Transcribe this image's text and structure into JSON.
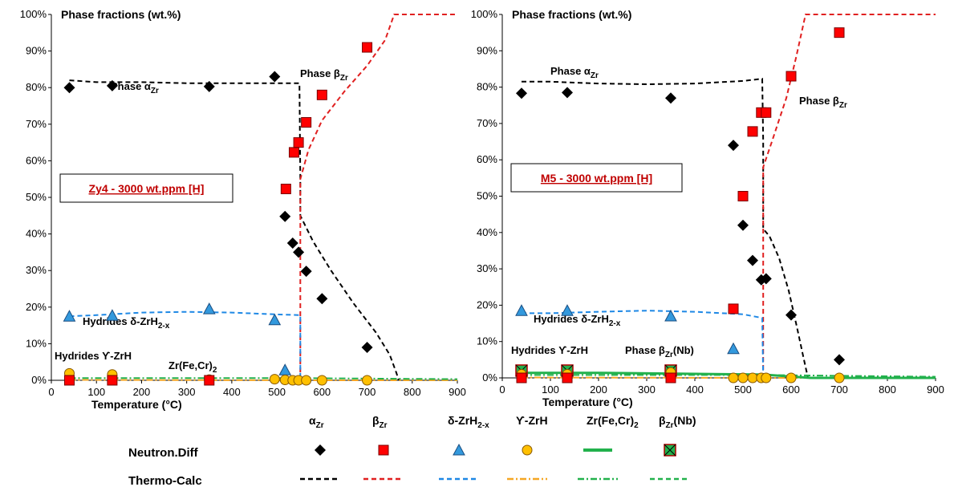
{
  "chart_data": [
    {
      "type": "scatter",
      "title": "Phase fractions (wt.%)",
      "xlabel": "Temperature (°C)",
      "xlim": [
        0,
        900
      ],
      "ylim": [
        0,
        100
      ],
      "xticks": [
        "0",
        "100",
        "200",
        "300",
        "400",
        "500",
        "600",
        "700",
        "800",
        "900"
      ],
      "yticks": [
        "0%",
        "10%",
        "20%",
        "30%",
        "40%",
        "50%",
        "60%",
        "70%",
        "80%",
        "90%",
        "100%"
      ],
      "alloy_label": "Zy4 - 3000 wt.ppm [H]",
      "annotations": [
        {
          "pre": "Phase α",
          "sub": "Zr",
          "post": ""
        },
        {
          "pre": "Phase β",
          "sub": "Zr",
          "post": ""
        },
        {
          "pre": "Hydrides δ-ZrH",
          "sub": "2-x",
          "post": ""
        },
        {
          "pre": "Hydrides ϒ-ZrH",
          "sub": "",
          "post": ""
        },
        {
          "pre": "Zr(Fe,Cr)",
          "sub": "2",
          "post": ""
        }
      ],
      "neutron_diff": {
        "alpha": [
          [
            40,
            80
          ],
          [
            135,
            80.5
          ],
          [
            350,
            80.3
          ],
          [
            495,
            83
          ],
          [
            518,
            44.8
          ],
          [
            535,
            37.5
          ],
          [
            548,
            35
          ],
          [
            565,
            29.8
          ],
          [
            600,
            22.3
          ],
          [
            700,
            9
          ]
        ],
        "beta": [
          [
            40,
            0
          ],
          [
            135,
            0
          ],
          [
            350,
            0
          ],
          [
            520,
            52.3
          ],
          [
            538,
            62.3
          ],
          [
            548,
            65
          ],
          [
            565,
            70.5
          ],
          [
            600,
            78
          ],
          [
            700,
            91
          ]
        ],
        "delta": [
          [
            40,
            17.5
          ],
          [
            135,
            17.7
          ],
          [
            350,
            19.5
          ],
          [
            495,
            16.5
          ],
          [
            518,
            2.8
          ]
        ],
        "gamma": [
          [
            40,
            1.9
          ],
          [
            135,
            1.6
          ],
          [
            350,
            0.2
          ],
          [
            495,
            0.3
          ],
          [
            518,
            0.1
          ],
          [
            535,
            0
          ],
          [
            548,
            0
          ],
          [
            565,
            0
          ],
          [
            600,
            0
          ],
          [
            700,
            0
          ]
        ]
      },
      "thermo_calc": {
        "alpha": [
          [
            40,
            82
          ],
          [
            100,
            81.5
          ],
          [
            200,
            81.5
          ],
          [
            300,
            81.2
          ],
          [
            400,
            81.2
          ],
          [
            500,
            81.2
          ],
          [
            550,
            81.2
          ],
          [
            552,
            55
          ],
          [
            552,
            45
          ],
          [
            580,
            38
          ],
          [
            620,
            30
          ],
          [
            670,
            21
          ],
          [
            720,
            13
          ],
          [
            750,
            7
          ],
          [
            765,
            2
          ],
          [
            770,
            0
          ]
        ],
        "beta": [
          [
            552,
            0
          ],
          [
            552,
            55
          ],
          [
            570,
            63
          ],
          [
            600,
            71
          ],
          [
            650,
            79
          ],
          [
            700,
            86
          ],
          [
            740,
            93
          ],
          [
            760,
            100
          ],
          [
            900,
            100
          ]
        ],
        "delta": [
          [
            40,
            17.5
          ],
          [
            100,
            17.8
          ],
          [
            200,
            18.5
          ],
          [
            300,
            18.7
          ],
          [
            400,
            18.5
          ],
          [
            500,
            18
          ],
          [
            552,
            17.8
          ],
          [
            552,
            0
          ]
        ],
        "gamma": [
          [
            40,
            0.1
          ],
          [
            552,
            0
          ],
          [
            900,
            0
          ]
        ],
        "zrfecr": [
          [
            40,
            0.6
          ],
          [
            552,
            0.6
          ],
          [
            900,
            0.3
          ]
        ]
      }
    },
    {
      "type": "scatter",
      "title": "Phase fractions (wt.%)",
      "xlabel": "Temperature (°C)",
      "xlim": [
        0,
        900
      ],
      "ylim": [
        0,
        100
      ],
      "xticks": [
        "0",
        "100",
        "200",
        "300",
        "400",
        "500",
        "600",
        "700",
        "800",
        "900"
      ],
      "yticks": [
        "0%",
        "10%",
        "20%",
        "30%",
        "40%",
        "50%",
        "60%",
        "70%",
        "80%",
        "90%",
        "100%"
      ],
      "alloy_label": "M5 - 3000 wt.ppm [H]",
      "annotations": [
        {
          "pre": "Phase α",
          "sub": "Zr",
          "post": ""
        },
        {
          "pre": "Phase β",
          "sub": "Zr",
          "post": ""
        },
        {
          "pre": "Hydrides δ-ZrH",
          "sub": "2-x",
          "post": ""
        },
        {
          "pre": "Hydrides ϒ-ZrH",
          "sub": "",
          "post": ""
        },
        {
          "pre": "Phase β",
          "sub": "Zr",
          "post": "(Nb)"
        }
      ],
      "neutron_diff": {
        "alpha": [
          [
            40,
            78.3
          ],
          [
            135,
            78.5
          ],
          [
            350,
            77
          ],
          [
            480,
            64
          ],
          [
            500,
            42
          ],
          [
            520,
            32.3
          ],
          [
            538,
            27
          ],
          [
            548,
            27.3
          ],
          [
            600,
            17.3
          ],
          [
            700,
            5
          ]
        ],
        "beta": [
          [
            40,
            0
          ],
          [
            135,
            0
          ],
          [
            350,
            0
          ],
          [
            480,
            19
          ],
          [
            500,
            50
          ],
          [
            520,
            67.8
          ],
          [
            538,
            73
          ],
          [
            548,
            73
          ],
          [
            600,
            83
          ],
          [
            700,
            95
          ]
        ],
        "delta": [
          [
            40,
            18.5
          ],
          [
            135,
            18.5
          ],
          [
            350,
            17
          ],
          [
            480,
            8
          ]
        ],
        "gamma": [
          [
            40,
            1
          ],
          [
            135,
            1
          ],
          [
            350,
            1.5
          ],
          [
            480,
            0
          ],
          [
            500,
            0
          ],
          [
            520,
            0
          ],
          [
            538,
            0
          ],
          [
            548,
            0
          ],
          [
            600,
            0
          ],
          [
            700,
            0
          ]
        ],
        "beta_nb": [
          [
            40,
            2
          ],
          [
            135,
            2
          ],
          [
            350,
            2
          ]
        ]
      },
      "thermo_calc": {
        "alpha": [
          [
            40,
            81.5
          ],
          [
            100,
            81.5
          ],
          [
            200,
            81
          ],
          [
            300,
            80.8
          ],
          [
            400,
            81
          ],
          [
            500,
            81.7
          ],
          [
            540,
            82.3
          ],
          [
            542,
            65
          ],
          [
            542,
            41
          ],
          [
            555,
            39
          ],
          [
            575,
            33
          ],
          [
            595,
            24
          ],
          [
            612,
            14
          ],
          [
            625,
            6
          ],
          [
            635,
            0
          ]
        ],
        "beta": [
          [
            542,
            0
          ],
          [
            542,
            58
          ],
          [
            560,
            65
          ],
          [
            590,
            77
          ],
          [
            610,
            88
          ],
          [
            630,
            100
          ],
          [
            900,
            100
          ]
        ],
        "delta": [
          [
            40,
            17.8
          ],
          [
            100,
            17.8
          ],
          [
            200,
            18.2
          ],
          [
            300,
            18.5
          ],
          [
            400,
            18.2
          ],
          [
            500,
            17.5
          ],
          [
            540,
            16.5
          ],
          [
            542,
            0
          ]
        ],
        "gamma": [
          [
            40,
            0.1
          ],
          [
            542,
            0
          ],
          [
            900,
            0
          ]
        ],
        "zrfecr": [
          [
            40,
            0.8
          ],
          [
            542,
            0.8
          ],
          [
            900,
            0.3
          ]
        ],
        "beta_nb": [
          [
            40,
            1.4
          ],
          [
            200,
            1.4
          ],
          [
            542,
            0.9
          ],
          [
            640,
            0
          ],
          [
            900,
            0
          ]
        ]
      }
    }
  ],
  "legend": {
    "headers": [
      "α",
      "β",
      "δ-ZrH",
      "ϒ-ZrH",
      "Zr(Fe,Cr)",
      "β"
    ],
    "header_subs": [
      "Zr",
      "Zr",
      "2-x",
      "",
      "2",
      "Zr"
    ],
    "header_suffix": [
      "",
      "",
      "",
      "",
      "",
      "(Nb)"
    ],
    "row_neutron": "Neutron.Diff",
    "row_thermo": "Thermo-Calc"
  },
  "colors": {
    "alpha": "#000000",
    "beta": "#e02020",
    "beta_fill": "#ff0000",
    "delta_fill": "#3399dd",
    "delta_line": "#1e88e5",
    "gamma_fill": "#ffc000",
    "gamma_line": "#f5a623",
    "zrfecr": "#22b14c",
    "betanb": "#22b14c"
  }
}
